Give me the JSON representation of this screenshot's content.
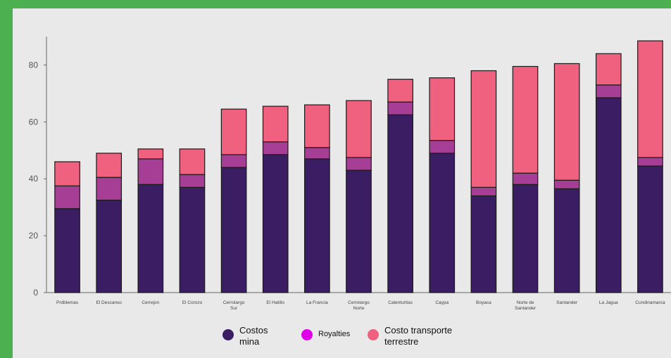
{
  "colors": {
    "frame": "#4caf50",
    "background": "#e9e9ea",
    "costos_mina": "#3a1d63",
    "royalties": "#a53e94",
    "costo_transporte": "#f0617f",
    "legend_royalties_dot": "#e000e8"
  },
  "chart_data": {
    "type": "bar",
    "stacked": true,
    "categories": [
      "Prdblemas",
      "El Descanso",
      "Cerrejon",
      "El Corozo",
      "Cerrolargo Sur",
      "El Hatillo",
      "La Francia",
      "Cerrolargo Norte",
      "Calenturitas",
      "Caypa",
      "Boyaca",
      "Norte de Santander",
      "Santander",
      "La Jagua",
      "Cundinamarca"
    ],
    "series": [
      {
        "name": "Costos mina",
        "color": "#3a1d63",
        "values": [
          29.5,
          32.5,
          38,
          37,
          44,
          48.5,
          47,
          43,
          62.5,
          49,
          34,
          38,
          36.5,
          68.5,
          44.5
        ]
      },
      {
        "name": "Royalties",
        "color": "#a53e94",
        "values": [
          8,
          8,
          9,
          4.5,
          4.5,
          4.5,
          4,
          4.5,
          4.5,
          4.5,
          3,
          4,
          3,
          4.5,
          3
        ]
      },
      {
        "name": "Costo transporte terrestre",
        "color": "#f0617f",
        "values": [
          8.5,
          8.5,
          3.5,
          9,
          16,
          12.5,
          15,
          20,
          8,
          22,
          41,
          37.5,
          41,
          11,
          41
        ]
      }
    ],
    "ylim": [
      0,
      90
    ],
    "yticks": [
      0,
      20,
      40,
      60,
      80
    ],
    "grid": false,
    "legend_position": "bottom"
  },
  "legend": [
    {
      "label": "Costos mina",
      "color": "#3a1d63"
    },
    {
      "label": "Royalties",
      "color": "#e000e8"
    },
    {
      "label": "Costo transporte terrestre",
      "color": "#f0617f"
    }
  ]
}
